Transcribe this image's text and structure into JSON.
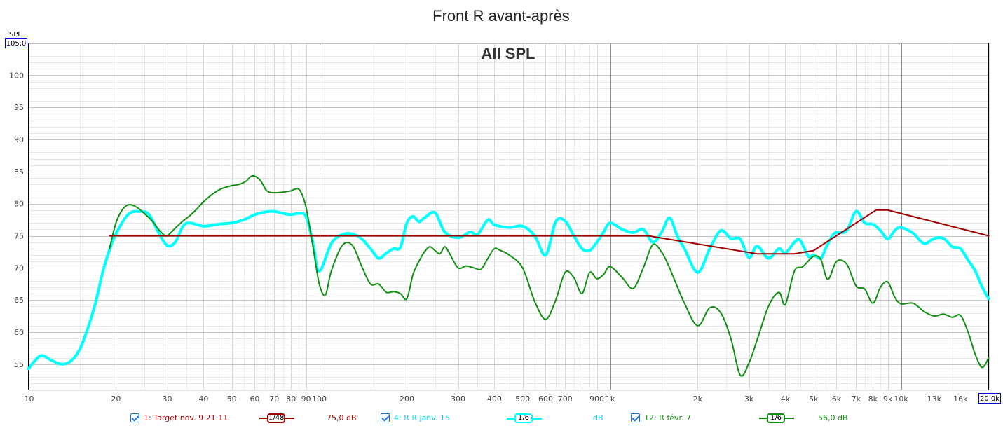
{
  "chart_data": {
    "type": "line",
    "title": "Front R avant-après",
    "subtitle": "All SPL",
    "ylabel": "SPL",
    "x_scale": "log",
    "xlim": [
      10,
      20000
    ],
    "ylim": [
      51,
      105
    ],
    "y_ticks": [
      55,
      60,
      65,
      70,
      75,
      80,
      85,
      90,
      95,
      100
    ],
    "x_ticks": [
      {
        "v": 10,
        "label": "10"
      },
      {
        "v": 20,
        "label": "20"
      },
      {
        "v": 30,
        "label": "30"
      },
      {
        "v": 40,
        "label": "40"
      },
      {
        "v": 50,
        "label": "50"
      },
      {
        "v": 60,
        "label": "60"
      },
      {
        "v": 70,
        "label": "70"
      },
      {
        "v": 80,
        "label": "80"
      },
      {
        "v": 90,
        "label": "90"
      },
      {
        "v": 100,
        "label": "100"
      },
      {
        "v": 200,
        "label": "200"
      },
      {
        "v": 300,
        "label": "300"
      },
      {
        "v": 400,
        "label": "400"
      },
      {
        "v": 500,
        "label": "500"
      },
      {
        "v": 600,
        "label": "600"
      },
      {
        "v": 700,
        "label": "700"
      },
      {
        "v": 900,
        "label": "900"
      },
      {
        "v": 1000,
        "label": "1k"
      },
      {
        "v": 2000,
        "label": "2k"
      },
      {
        "v": 3000,
        "label": "3k"
      },
      {
        "v": 4000,
        "label": "4k"
      },
      {
        "v": 5000,
        "label": "5k"
      },
      {
        "v": 6000,
        "label": "6k"
      },
      {
        "v": 7000,
        "label": "7k"
      },
      {
        "v": 8000,
        "label": "8k"
      },
      {
        "v": 9000,
        "label": "9k"
      },
      {
        "v": 10000,
        "label": "10k"
      },
      {
        "v": 13000,
        "label": "13k"
      },
      {
        "v": 16000,
        "label": "16k"
      }
    ],
    "y_max_label": "105,0",
    "x_max_label": "20,0k",
    "grid": true,
    "series": [
      {
        "name": "1: Target nov. 9 21:11",
        "color": "#a00000",
        "smoothing": "1/48",
        "offset": "75,0 dB",
        "x": [
          19,
          1350,
          3200,
          4300,
          5000,
          8200,
          9000,
          20000
        ],
        "y": [
          75,
          75,
          72.2,
          72.2,
          72.7,
          79,
          79,
          75
        ]
      },
      {
        "name": "4: R R janv. 15",
        "color": "#00ffff",
        "smoothing": "1/6",
        "offset": "dB",
        "x": [
          10,
          11,
          12,
          13,
          14,
          15,
          16,
          17,
          18,
          19,
          20,
          22,
          24,
          26,
          28,
          30,
          32,
          34,
          36,
          40,
          45,
          50,
          55,
          60,
          65,
          70,
          75,
          80,
          85,
          90,
          95,
          100,
          110,
          120,
          130,
          140,
          150,
          160,
          170,
          180,
          190,
          200,
          210,
          220,
          230,
          250,
          270,
          300,
          330,
          350,
          380,
          400,
          450,
          500,
          550,
          600,
          650,
          700,
          750,
          800,
          850,
          900,
          950,
          1000,
          1100,
          1200,
          1300,
          1400,
          1500,
          1600,
          1700,
          1800,
          2000,
          2200,
          2400,
          2600,
          2800,
          3000,
          3200,
          3500,
          3800,
          4000,
          4300,
          4500,
          4800,
          5000,
          5300,
          5500,
          5800,
          6000,
          6500,
          7000,
          7500,
          8000,
          8500,
          9000,
          9500,
          10000,
          11000,
          12000,
          13000,
          14000,
          15000,
          16000,
          17000,
          18000,
          19000,
          20000
        ],
        "y": [
          54.3,
          56.3,
          55.6,
          55,
          55.5,
          57.3,
          60.6,
          64.5,
          69.3,
          72.8,
          75.3,
          78.3,
          78.8,
          78.3,
          75.5,
          73.5,
          74,
          76.5,
          77,
          76.5,
          76.8,
          77,
          77.5,
          78.3,
          78.7,
          78.8,
          78.5,
          78.3,
          78.5,
          78,
          74,
          69.5,
          73.8,
          75.2,
          75.3,
          74.5,
          73,
          71.5,
          72.3,
          73,
          73.2,
          77,
          78,
          77.2,
          77.8,
          78.6,
          75.6,
          74.7,
          75.6,
          75.2,
          77.5,
          76.7,
          76.3,
          76.5,
          75,
          72,
          77.2,
          77.3,
          75,
          73,
          72.7,
          74,
          75.6,
          77,
          76,
          75.5,
          76,
          74,
          75.5,
          77.8,
          75,
          73,
          69.3,
          73,
          75.8,
          74.6,
          74.5,
          71.6,
          73.4,
          71.5,
          73,
          72.3,
          74,
          74.3,
          71.8,
          72,
          71.5,
          73,
          75,
          75.5,
          75.8,
          78.8,
          77,
          76.8,
          75.8,
          74.5,
          75.8,
          76.3,
          75.4,
          73.8,
          74.6,
          74.6,
          73.3,
          73,
          71.2,
          69.5,
          67,
          65.2
        ]
      },
      {
        "name": "12: R févr. 7",
        "color": "#109010",
        "smoothing": "1/6",
        "offset": "56,0 dB",
        "x": [
          19,
          20,
          21,
          22,
          23,
          24,
          25,
          26,
          27,
          28,
          29,
          30,
          32,
          34,
          36,
          38,
          40,
          43,
          46,
          50,
          53,
          56,
          58,
          60,
          63,
          66,
          70,
          75,
          80,
          83,
          86,
          90,
          95,
          100,
          105,
          110,
          120,
          130,
          140,
          150,
          160,
          170,
          180,
          190,
          200,
          210,
          220,
          230,
          240,
          250,
          260,
          270,
          280,
          300,
          320,
          340,
          360,
          380,
          400,
          420,
          450,
          500,
          550,
          600,
          650,
          700,
          750,
          800,
          850,
          900,
          950,
          1000,
          1100,
          1200,
          1300,
          1400,
          1500,
          1600,
          1800,
          2000,
          2200,
          2400,
          2600,
          2800,
          3000,
          3200,
          3500,
          3800,
          4000,
          4300,
          4600,
          5000,
          5300,
          5600,
          6000,
          6500,
          7000,
          7500,
          8000,
          8500,
          9000,
          9500,
          10000,
          11000,
          12000,
          13000,
          14000,
          15000,
          16000,
          17000,
          18000,
          19000,
          20000
        ],
        "y": [
          73,
          77,
          79,
          79.8,
          79.7,
          79.2,
          78.5,
          77.8,
          77,
          76,
          75.3,
          75,
          76.2,
          77.3,
          78.2,
          79.2,
          80.3,
          81.5,
          82.3,
          82.8,
          83,
          83.5,
          84.2,
          84.3,
          83.5,
          82,
          81.7,
          81.8,
          82,
          82.3,
          82,
          79.5,
          73.5,
          67.5,
          65.8,
          69.5,
          73.5,
          73.5,
          70.2,
          67.5,
          67.5,
          66.2,
          66.3,
          66,
          65.2,
          69,
          71,
          72.5,
          73.3,
          72.7,
          72.2,
          73.3,
          72.3,
          70,
          70.3,
          70,
          69.8,
          71.5,
          73,
          72.7,
          72,
          70,
          64.8,
          62,
          65,
          69.3,
          68.5,
          66,
          69.3,
          68.3,
          69,
          70.2,
          68.5,
          66.8,
          70,
          73.6,
          72.5,
          70,
          64.5,
          61,
          63.8,
          63,
          59,
          53.3,
          55.2,
          58.8,
          64,
          66.2,
          64.3,
          69.5,
          70.2,
          71.8,
          71.3,
          68.2,
          71,
          70.6,
          67.2,
          66.7,
          64.5,
          67,
          67.8,
          65.5,
          64.4,
          64.5,
          63.2,
          62.5,
          62.8,
          62.3,
          62.6,
          60,
          56.5,
          54.5,
          56
        ]
      }
    ]
  }
}
